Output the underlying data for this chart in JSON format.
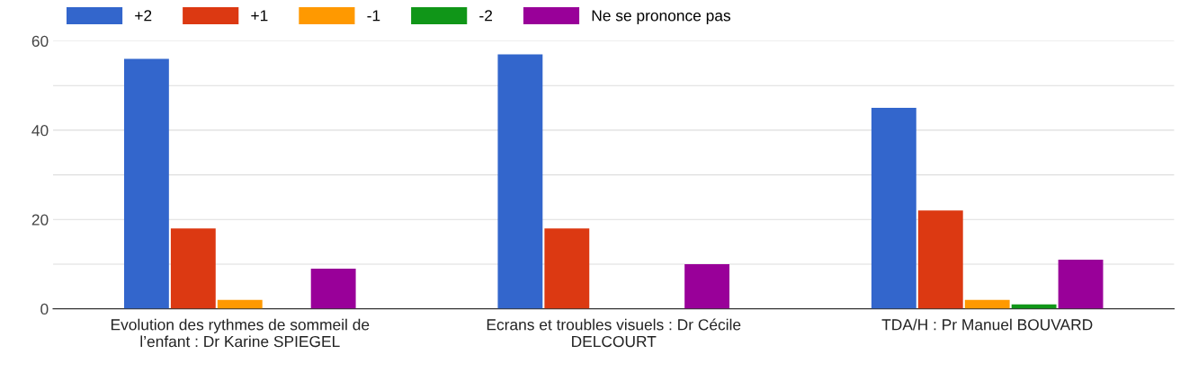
{
  "chart_data": {
    "type": "bar",
    "categories": [
      "Evolution des rythmes de sommeil de\nl’enfant : Dr Karine SPIEGEL",
      "Ecrans et troubles visuels : Dr Cécile\nDELCOURT",
      "TDA/H : Pr Manuel BOUVARD"
    ],
    "series": [
      {
        "name": "+2",
        "color": "#3366cc",
        "values": [
          56,
          57,
          45
        ]
      },
      {
        "name": "+1",
        "color": "#dc3912",
        "values": [
          18,
          18,
          22
        ]
      },
      {
        "name": "-1",
        "color": "#ff9900",
        "values": [
          2,
          0,
          2
        ]
      },
      {
        "name": "-2",
        "color": "#109618",
        "values": [
          0,
          0,
          1
        ]
      },
      {
        "name": "Ne se prononce pas",
        "color": "#990099",
        "values": [
          9,
          10,
          11
        ]
      }
    ],
    "ylim": [
      0,
      60
    ],
    "yticks": [
      0,
      {
        "value": 10,
        "label": null
      },
      20,
      {
        "value": 30,
        "label": null
      },
      40,
      {
        "value": 50,
        "label": null
      },
      60
    ],
    "grid": "y",
    "legend": "top left"
  }
}
